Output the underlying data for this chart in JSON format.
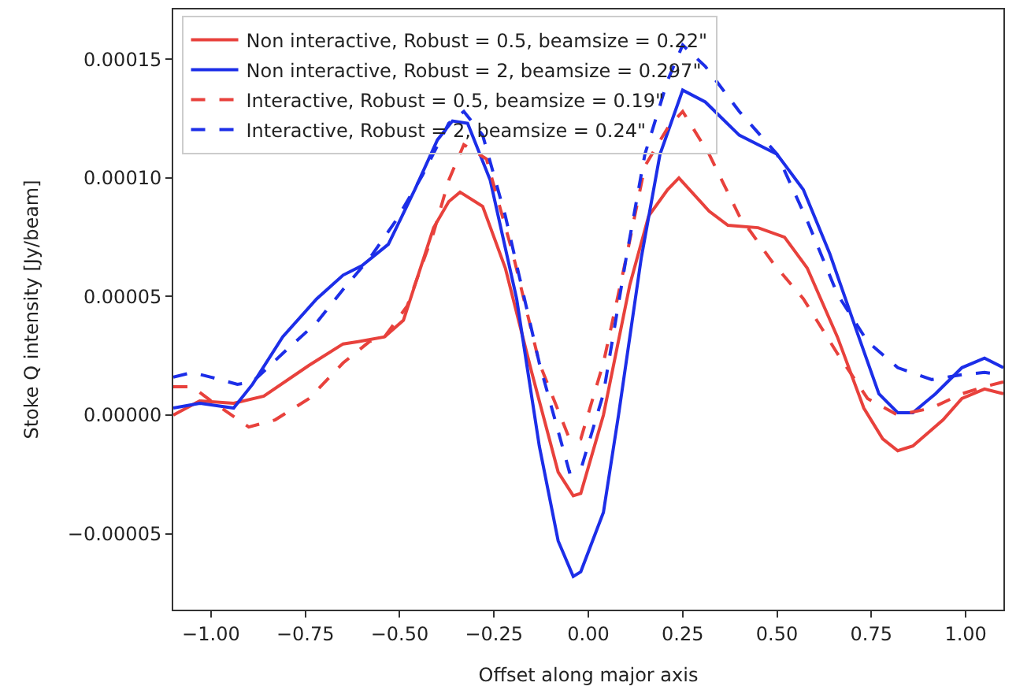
{
  "chart_data": {
    "type": "line",
    "xlabel": "Offset along major axis",
    "ylabel": "Stoke Q intensity [Jy/beam]",
    "xlim": [
      -1.1,
      1.1
    ],
    "ylim": [
      -8.2e-05,
      0.000171
    ],
    "xticks": [
      {
        "value": -1.0,
        "label": "−1.00"
      },
      {
        "value": -0.75,
        "label": "−0.75"
      },
      {
        "value": -0.5,
        "label": "−0.50"
      },
      {
        "value": -0.25,
        "label": "−0.25"
      },
      {
        "value": 0.0,
        "label": "0.00"
      },
      {
        "value": 0.25,
        "label": "0.25"
      },
      {
        "value": 0.5,
        "label": "0.50"
      },
      {
        "value": 0.75,
        "label": "0.75"
      },
      {
        "value": 1.0,
        "label": "1.00"
      }
    ],
    "yticks": [
      {
        "value": -5e-05,
        "label": "−0.00005"
      },
      {
        "value": 0.0,
        "label": "0.00000"
      },
      {
        "value": 5e-05,
        "label": "0.00005"
      },
      {
        "value": 0.0001,
        "label": "0.00010"
      },
      {
        "value": 0.00015,
        "label": "0.00015"
      }
    ],
    "legend": "top left",
    "series": [
      {
        "name": "Non interactive, Robust = 0.5, beamsize = 0.22\"",
        "color": "#e8413c",
        "line_style": "solid",
        "x": [
          -1.1,
          -1.03,
          -0.94,
          -0.86,
          -0.74,
          -0.65,
          -0.61,
          -0.54,
          -0.49,
          -0.41,
          -0.37,
          -0.34,
          -0.28,
          -0.22,
          -0.15,
          -0.08,
          -0.04,
          -0.02,
          0.04,
          0.11,
          0.16,
          0.21,
          0.24,
          0.32,
          0.37,
          0.45,
          0.52,
          0.58,
          0.66,
          0.73,
          0.78,
          0.82,
          0.86,
          0.94,
          0.99,
          1.05,
          1.1
        ],
        "values": [
          0.0,
          6e-06,
          5e-06,
          8e-06,
          2.1e-05,
          3e-05,
          3.1e-05,
          3.3e-05,
          4e-05,
          7.9e-05,
          9e-05,
          9.4e-05,
          8.8e-05,
          6.2e-05,
          1.8e-05,
          -2.4e-05,
          -3.4e-05,
          -3.3e-05,
          0.0,
          5.5e-05,
          8.4e-05,
          9.5e-05,
          0.0001,
          8.6e-05,
          8e-05,
          7.9e-05,
          7.5e-05,
          6.2e-05,
          3.3e-05,
          3e-06,
          -1e-05,
          -1.5e-05,
          -1.3e-05,
          -2e-06,
          7e-06,
          1.1e-05,
          9e-06
        ]
      },
      {
        "name": "Non interactive, Robust = 2, beamsize = 0.297\"",
        "color": "#1c2ee8",
        "line_style": "solid",
        "x": [
          -1.1,
          -1.03,
          -0.94,
          -0.89,
          -0.81,
          -0.72,
          -0.65,
          -0.6,
          -0.53,
          -0.46,
          -0.4,
          -0.36,
          -0.32,
          -0.26,
          -0.19,
          -0.13,
          -0.08,
          -0.04,
          -0.02,
          0.04,
          0.08,
          0.14,
          0.19,
          0.25,
          0.31,
          0.4,
          0.5,
          0.57,
          0.64,
          0.71,
          0.77,
          0.82,
          0.86,
          0.92,
          0.99,
          1.05,
          1.1
        ],
        "values": [
          3e-06,
          5e-06,
          3e-06,
          1.3e-05,
          3.3e-05,
          4.9e-05,
          5.9e-05,
          6.3e-05,
          7.2e-05,
          9.5e-05,
          0.000116,
          0.000124,
          0.000123,
          9.9e-05,
          4.9e-05,
          -1.3e-05,
          -5.3e-05,
          -6.8e-05,
          -6.6e-05,
          -4.1e-05,
          0.0,
          6.6e-05,
          0.00011,
          0.000137,
          0.000132,
          0.000118,
          0.00011,
          9.5e-05,
          6.8e-05,
          3.6e-05,
          9e-06,
          1e-06,
          1e-06,
          9e-06,
          2e-05,
          2.4e-05,
          2e-05
        ]
      },
      {
        "name": "Interactive, Robust = 0.5, beamsize = 0.19\"",
        "color": "#e8413c",
        "line_style": "dashed",
        "x": [
          -1.1,
          -1.05,
          -1.0,
          -0.9,
          -0.83,
          -0.74,
          -0.65,
          -0.58,
          -0.54,
          -0.48,
          -0.41,
          -0.37,
          -0.33,
          -0.27,
          -0.2,
          -0.13,
          -0.05,
          -0.02,
          0.04,
          0.1,
          0.15,
          0.21,
          0.25,
          0.32,
          0.4,
          0.49,
          0.57,
          0.66,
          0.74,
          0.82,
          0.91,
          0.99,
          1.05,
          1.1
        ],
        "values": [
          1.2e-05,
          1.2e-05,
          6e-06,
          -5e-06,
          -2e-06,
          7e-06,
          2.2e-05,
          3.1e-05,
          3.3e-05,
          4.6e-05,
          7.7e-05,
          9.9e-05,
          0.000114,
          0.000108,
          6.8e-05,
          2.2e-05,
          -1e-05,
          -1e-05,
          2.2e-05,
          6.6e-05,
          0.000105,
          0.000121,
          0.000128,
          0.00011,
          8.4e-05,
          6.4e-05,
          4.9e-05,
          2.6e-05,
          7e-06,
          0.0,
          3e-06,
          9e-06,
          1.2e-05,
          1.4e-05
        ]
      },
      {
        "name": "Interactive, Robust = 2, beamsize = 0.24\"",
        "color": "#1c2ee8",
        "line_style": "dashed",
        "x": [
          -1.1,
          -1.05,
          -1.0,
          -0.93,
          -0.89,
          -0.81,
          -0.72,
          -0.65,
          -0.58,
          -0.51,
          -0.44,
          -0.37,
          -0.33,
          -0.28,
          -0.22,
          -0.13,
          -0.05,
          -0.02,
          0.04,
          0.1,
          0.15,
          0.21,
          0.25,
          0.31,
          0.4,
          0.5,
          0.58,
          0.66,
          0.74,
          0.82,
          0.91,
          0.99,
          1.05,
          1.1
        ],
        "values": [
          1.6e-05,
          1.8e-05,
          1.6e-05,
          1.3e-05,
          1.4e-05,
          2.6e-05,
          3.9e-05,
          5.3e-05,
          6.6e-05,
          8.2e-05,
          0.000101,
          0.000123,
          0.000128,
          0.000118,
          8.4e-05,
          2.2e-05,
          -2.4e-05,
          -2.3e-05,
          9e-06,
          6.6e-05,
          0.00011,
          0.000141,
          0.000156,
          0.000147,
          0.000128,
          0.00011,
          8.2e-05,
          5.1e-05,
          3.1e-05,
          2e-05,
          1.5e-05,
          1.7e-05,
          1.8e-05,
          1.7e-05
        ]
      }
    ]
  }
}
